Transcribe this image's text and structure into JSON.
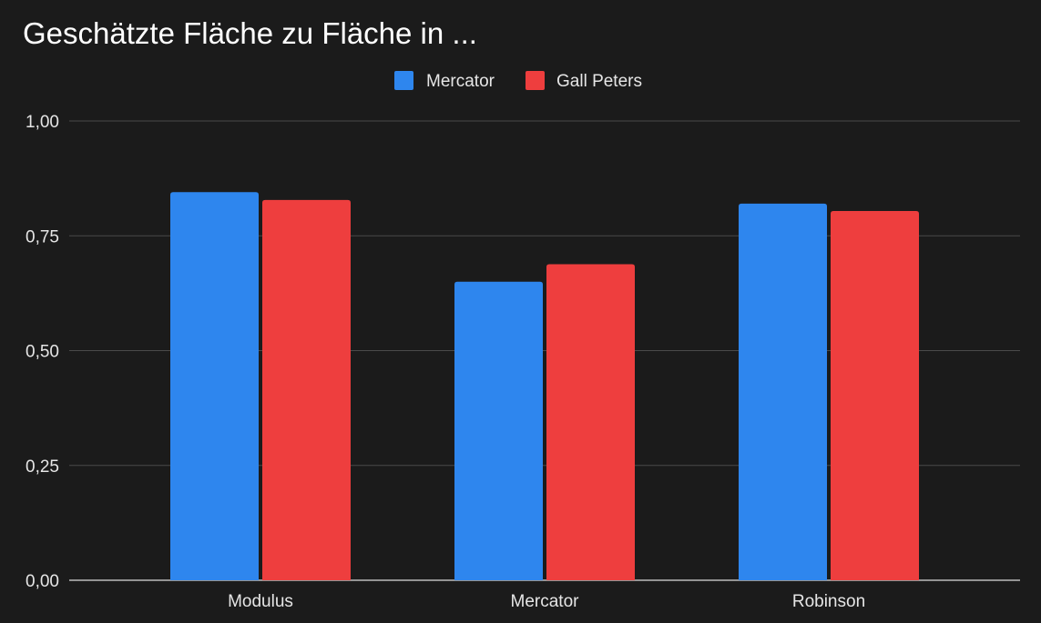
{
  "chart_data": {
    "type": "bar",
    "title": "Geschätzte Fläche zu Fläche in ...",
    "categories": [
      "Modulus",
      "Mercator",
      "Robinson"
    ],
    "series": [
      {
        "name": "Mercator",
        "color": "#2e86ee",
        "values": [
          0.845,
          0.65,
          0.82
        ]
      },
      {
        "name": "Gall Peters",
        "color": "#ee3e3e",
        "values": [
          0.828,
          0.688,
          0.804
        ]
      }
    ],
    "ylim": [
      0,
      1
    ],
    "yticks": [
      "0,00",
      "0,25",
      "0,50",
      "0,75",
      "1,00"
    ],
    "ytick_values": [
      0,
      0.25,
      0.5,
      0.75,
      1.0
    ],
    "grid": true,
    "legend_position": "top-center",
    "xlabel": "",
    "ylabel": ""
  }
}
